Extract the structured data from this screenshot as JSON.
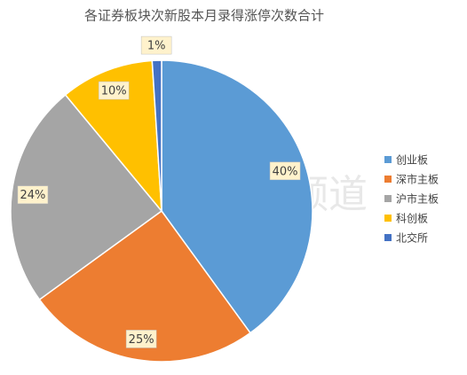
{
  "chart_data": {
    "type": "pie",
    "title": "各证券板块次新股本月录得涨停次数合计",
    "watermark": "财联社股市频道",
    "categories": [
      "创业板",
      "深市主板",
      "沪市主板",
      "科创板",
      "北交所"
    ],
    "values": [
      40,
      25,
      24,
      10,
      1
    ],
    "value_labels": [
      "40%",
      "25%",
      "24%",
      "10%",
      "1%"
    ],
    "colors": [
      "#5b9bd5",
      "#ed7d31",
      "#a5a5a5",
      "#ffc000",
      "#4472c4"
    ],
    "legend": "right"
  }
}
